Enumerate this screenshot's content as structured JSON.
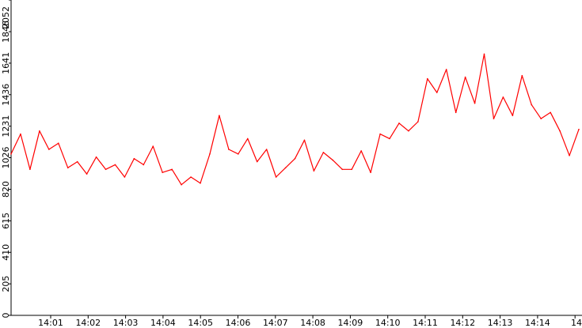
{
  "chart_data": {
    "type": "line",
    "title": "",
    "xlabel": "",
    "ylabel": "",
    "ylim": [
      0,
      2052
    ],
    "xlim": [
      "14:00:05",
      "14:15:10"
    ],
    "y_ticks": [
      "0",
      "205",
      "410",
      "615",
      "820",
      "1026",
      "1231",
      "1436",
      "1641",
      "1846",
      "2052"
    ],
    "x_ticks": [
      "14:01",
      "14:02",
      "14:03",
      "14:04",
      "14:05",
      "14:06",
      "14:07",
      "14:08",
      "14:09",
      "14:10",
      "14:11",
      "14:12",
      "14:13",
      "14:14",
      "14"
    ],
    "grid": false,
    "legend": "none",
    "series": [
      {
        "color": "#ff0000",
        "x": [
          "14:00:05",
          "14:00:20",
          "14:00:35",
          "14:00:50",
          "14:01:05",
          "14:01:20",
          "14:01:35",
          "14:01:50",
          "14:02:05",
          "14:02:20",
          "14:02:35",
          "14:02:50",
          "14:03:05",
          "14:03:20",
          "14:03:35",
          "14:03:50",
          "14:04:05",
          "14:04:20",
          "14:04:35",
          "14:04:50",
          "14:05:05",
          "14:05:20",
          "14:05:35",
          "14:05:50",
          "14:06:05",
          "14:06:20",
          "14:06:35",
          "14:06:50",
          "14:07:05",
          "14:07:20",
          "14:07:35",
          "14:07:50",
          "14:08:05",
          "14:08:20",
          "14:08:35",
          "14:08:50",
          "14:09:05",
          "14:09:20",
          "14:09:35",
          "14:09:50",
          "14:10:05",
          "14:10:20",
          "14:10:35",
          "14:10:50",
          "14:11:05",
          "14:11:20",
          "14:11:35",
          "14:11:50",
          "14:12:05",
          "14:12:20",
          "14:12:35",
          "14:12:50",
          "14:13:05",
          "14:13:20",
          "14:13:35",
          "14:13:50",
          "14:14:05",
          "14:14:20",
          "14:14:35",
          "14:14:50",
          "14:15:05"
        ],
        "values": [
          1050,
          1180,
          950,
          1200,
          1080,
          1120,
          960,
          1000,
          920,
          1030,
          950,
          980,
          900,
          1020,
          980,
          1100,
          930,
          950,
          850,
          900,
          860,
          1050,
          1300,
          1080,
          1050,
          1150,
          1000,
          1080,
          900,
          960,
          1020,
          1140,
          940,
          1060,
          1010,
          950,
          950,
          1070,
          930,
          1180,
          1150,
          1250,
          1200,
          1260,
          1540,
          1450,
          1600,
          1320,
          1550,
          1380,
          1700,
          1280,
          1420,
          1300,
          1560,
          1370,
          1280,
          1320,
          1200,
          1040,
          1210
        ]
      }
    ]
  }
}
